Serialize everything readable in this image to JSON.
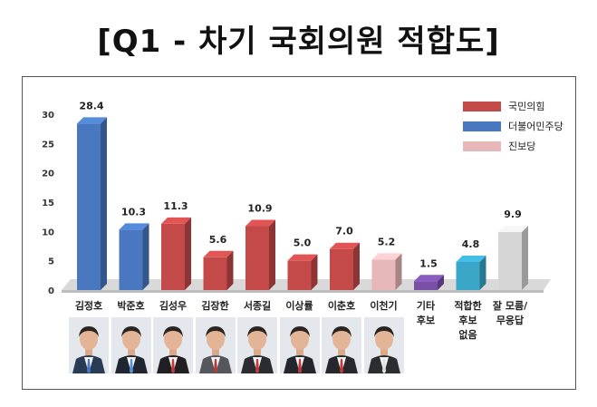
{
  "title": "[Q1 - 차기 국회의원 적합도]",
  "legend": [
    {
      "label": "국민의힘",
      "color": "#c44a4a"
    },
    {
      "label": "더불어민주당",
      "color": "#4a78c0"
    },
    {
      "label": "진보당",
      "color": "#e8b7ba"
    }
  ],
  "chart_data": {
    "type": "bar",
    "title": "",
    "xlabel": "",
    "ylabel": "",
    "ylim": [
      0,
      30
    ],
    "yticks": [
      0,
      5,
      10,
      15,
      20,
      25,
      30
    ],
    "categories": [
      "김정호",
      "박준호",
      "김성우",
      "김장한",
      "서종길",
      "이상률",
      "이춘호",
      "이천기",
      "기타 후보",
      "적합한 후보 없음",
      "잘 모름/ 무응답"
    ],
    "values": [
      28.4,
      10.3,
      11.3,
      5.6,
      10.9,
      5.0,
      7.0,
      5.2,
      1.5,
      4.8,
      9.9
    ],
    "value_labels": [
      "28.4",
      "10.3",
      "11.3",
      "5.6",
      "10.9",
      "5.0",
      "7.0",
      "5.2",
      "1.5",
      "4.8",
      "9.9"
    ],
    "colors": [
      "#4a78c0",
      "#4a78c0",
      "#c44a4a",
      "#c44a4a",
      "#c44a4a",
      "#c44a4a",
      "#c44a4a",
      "#e8b7ba",
      "#7a4fa8",
      "#3aa6c8",
      "#d6d6d6"
    ],
    "category_display": [
      "김정호",
      "박준호",
      "김성우",
      "김장한",
      "서종길",
      "이상률",
      "이춘호",
      "이천기",
      "기타\n후보",
      "적합한\n후보\n없음",
      "잘 모름/\n무응답"
    ],
    "grid": false,
    "legend_position": "top-right"
  },
  "photos": [
    {
      "name": "김정호",
      "jacket": "#2a3b55",
      "tie": "#4a78c0"
    },
    {
      "name": "박준호",
      "jacket": "#1f2630",
      "tie": "#5b8fd6"
    },
    {
      "name": "김성우",
      "jacket": "#1f1f24",
      "tie": "#c43a3a"
    },
    {
      "name": "김장한",
      "jacket": "#55575c",
      "tie": "#b53a3a"
    },
    {
      "name": "서종길",
      "jacket": "#2a2c30",
      "tie": "#c43a3a"
    },
    {
      "name": "이상률",
      "jacket": "#23262d",
      "tie": "#c43a3a"
    },
    {
      "name": "이춘호",
      "jacket": "#26282e",
      "tie": "#c43a3a"
    },
    {
      "name": "이천기",
      "jacket": "#2b2d31",
      "tie": "#e0e0e0"
    }
  ]
}
